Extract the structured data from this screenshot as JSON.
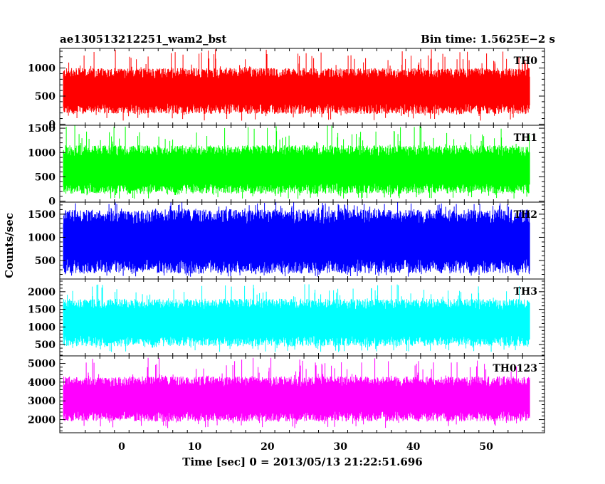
{
  "header": {
    "title": "ae130513212251_wam2_bst",
    "bin_time": "Bin time: 1.5625E−2 s"
  },
  "chart_data": {
    "type": "line",
    "xlabel": "Time [sec] 0 = 2013/05/13 21:22:51.696",
    "ylabel": "Counts/sec",
    "xlim": [
      -8.5,
      58
    ],
    "x_data_range": [
      -8,
      56
    ],
    "x_ticks": [
      "0",
      "10",
      "20",
      "30",
      "40",
      "50"
    ],
    "x_tick_values": [
      0,
      10,
      20,
      30,
      40,
      50
    ],
    "panels": [
      {
        "name": "TH0",
        "color": "#ff0000",
        "ylim": [
          -20,
          1350
        ],
        "y_ticks": [
          0,
          500,
          1000
        ],
        "y_tick_labels": [
          "0",
          "500",
          "1000"
        ],
        "typical_low": 180,
        "typical_high": 1000,
        "peak_max": 1340
      },
      {
        "name": "TH1",
        "color": "#00ff00",
        "ylim": [
          -20,
          1560
        ],
        "y_ticks": [
          0,
          500,
          1000,
          1500
        ],
        "y_tick_labels": [
          "0",
          "500",
          "1000",
          "1500"
        ],
        "typical_low": 150,
        "typical_high": 1150,
        "peak_max": 1560
      },
      {
        "name": "TH2",
        "color": "#0000ff",
        "ylim": [
          100,
          1760
        ],
        "y_ticks": [
          500,
          1000,
          1500
        ],
        "y_tick_labels": [
          "500",
          "1000",
          "1500"
        ],
        "typical_low": 220,
        "typical_high": 1600,
        "peak_max": 1760
      },
      {
        "name": "TH3",
        "color": "#00ffff",
        "ylim": [
          180,
          2360
        ],
        "y_ticks": [
          500,
          1000,
          1500,
          2000
        ],
        "y_tick_labels": [
          "500",
          "1000",
          "1500",
          "2000"
        ],
        "typical_low": 450,
        "typical_high": 1800,
        "peak_max": 2220
      },
      {
        "name": "TH0123",
        "color": "#ff00ff",
        "ylim": [
          1300,
          5400
        ],
        "y_ticks": [
          2000,
          3000,
          4000,
          5000
        ],
        "y_tick_labels": [
          "2000",
          "3000",
          "4000",
          "5000"
        ],
        "typical_low": 1900,
        "typical_high": 4300,
        "peak_max": 5300
      }
    ]
  }
}
